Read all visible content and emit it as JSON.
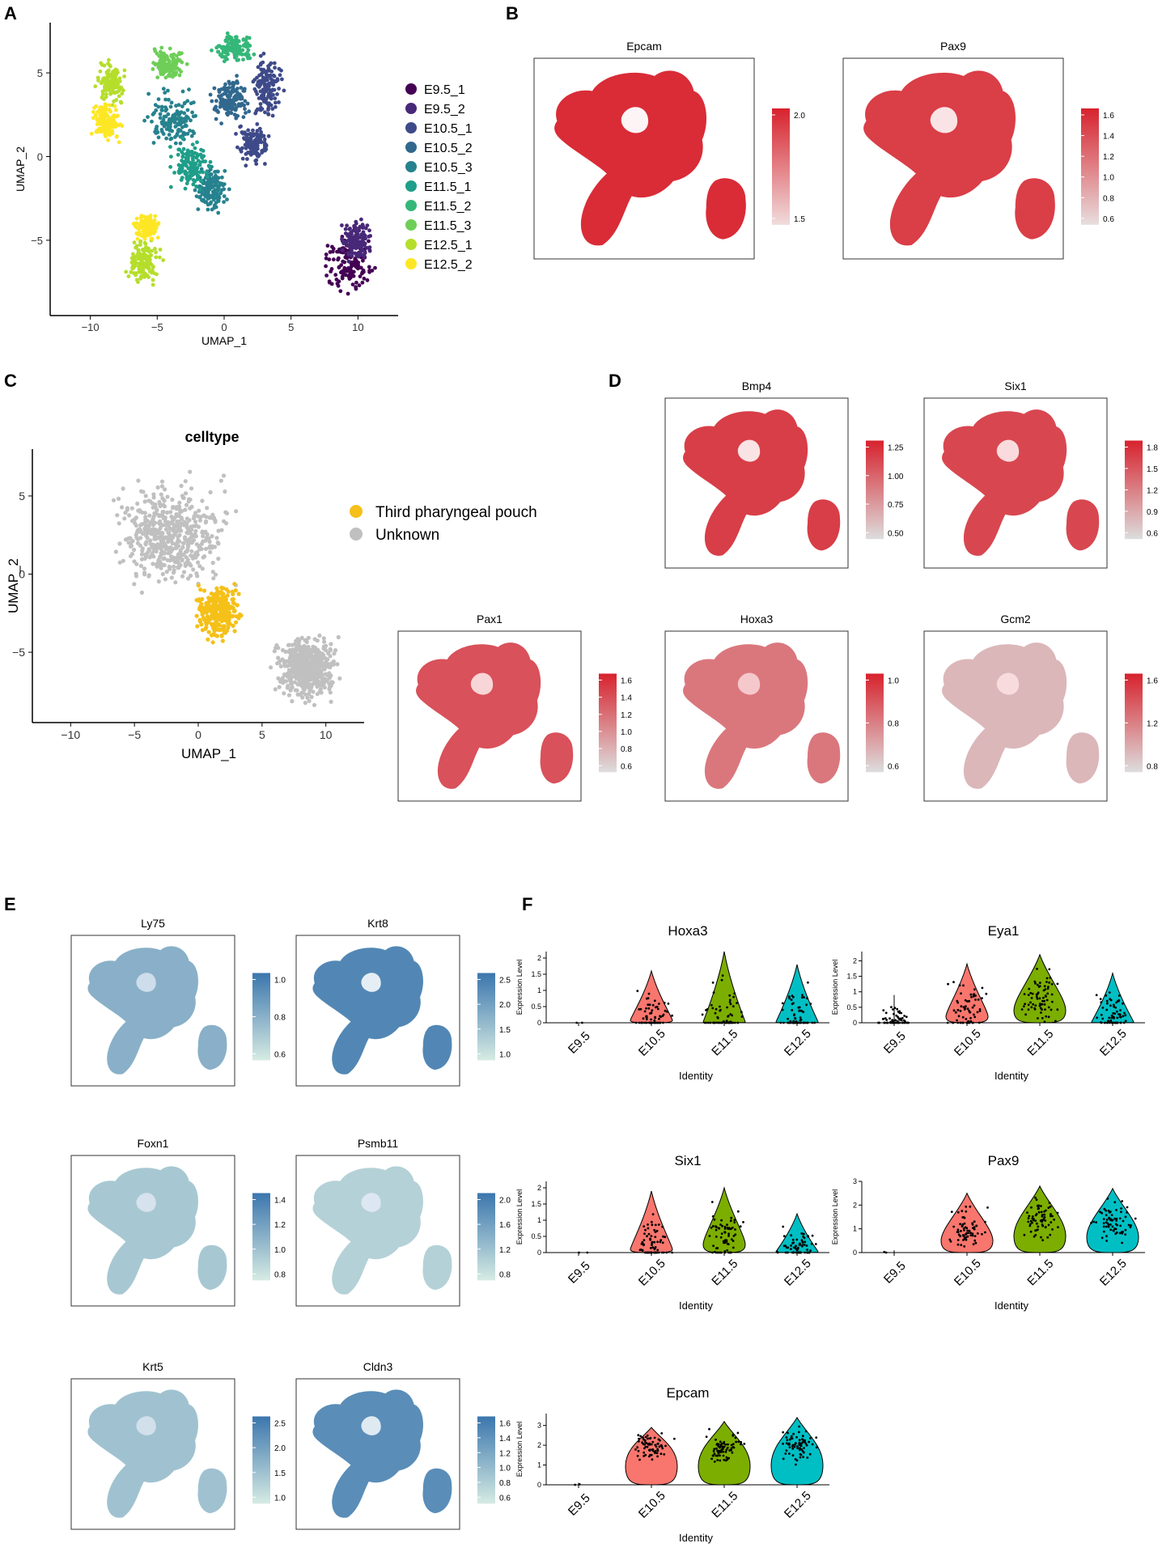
{
  "panels": {
    "A": {
      "letter": "A",
      "xlabel": "UMAP_1",
      "ylabel": "UMAP_2",
      "xticks": [
        "−10",
        "−5",
        "0",
        "5",
        "10"
      ],
      "yticks": [
        "5",
        "0",
        "−5"
      ],
      "legend": [
        {
          "label": "E9.5_1",
          "color": "#440154"
        },
        {
          "label": "E9.5_2",
          "color": "#482878"
        },
        {
          "label": "E10.5_1",
          "color": "#3e4a89"
        },
        {
          "label": "E10.5_2",
          "color": "#31688e"
        },
        {
          "label": "E10.5_3",
          "color": "#26828e"
        },
        {
          "label": "E11.5_1",
          "color": "#1f9e89"
        },
        {
          "label": "E11.5_2",
          "color": "#35b779"
        },
        {
          "label": "E11.5_3",
          "color": "#6ece58"
        },
        {
          "label": "E12.5_1",
          "color": "#b5de2b"
        },
        {
          "label": "E12.5_2",
          "color": "#fde725"
        }
      ]
    },
    "B": {
      "letter": "B",
      "features": [
        {
          "title": "Epcam",
          "ticks": [
            "2.0",
            "1.5"
          ]
        },
        {
          "title": "Pax9",
          "ticks": [
            "1.6",
            "1.4",
            "1.2",
            "1.0",
            "0.8",
            "0.6"
          ]
        }
      ]
    },
    "C": {
      "letter": "C",
      "title": "celltype",
      "xlabel": "UMAP_1",
      "ylabel": "UMAP_2",
      "xticks": [
        "−10",
        "−5",
        "0",
        "5",
        "10"
      ],
      "yticks": [
        "5",
        "0",
        "−5"
      ],
      "legend": [
        {
          "label": "Third pharyngeal pouch",
          "color": "#f5c018"
        },
        {
          "label": "Unknown",
          "color": "#c0c0c0"
        }
      ]
    },
    "D": {
      "letter": "D",
      "features": [
        {
          "title": "Bmp4",
          "ticks": [
            "1.25",
            "1.00",
            "0.75",
            "0.50"
          ]
        },
        {
          "title": "Six1",
          "ticks": [
            "1.8",
            "1.5",
            "1.2",
            "0.9",
            "0.6"
          ]
        },
        {
          "title": "Pax1",
          "ticks": [
            "1.6",
            "1.4",
            "1.2",
            "1.0",
            "0.8",
            "0.6"
          ]
        },
        {
          "title": "Hoxa3",
          "ticks": [
            "1.0",
            "0.8",
            "0.6"
          ]
        },
        {
          "title": "Gcm2",
          "ticks": [
            "1.6",
            "1.2",
            "0.8"
          ]
        }
      ]
    },
    "E": {
      "letter": "E",
      "features": [
        {
          "title": "Ly75",
          "ticks": [
            "1.0",
            "0.8",
            "0.6"
          ]
        },
        {
          "title": "Krt8",
          "ticks": [
            "2.5",
            "2.0",
            "1.5",
            "1.0"
          ]
        },
        {
          "title": "Foxn1",
          "ticks": [
            "1.4",
            "1.2",
            "1.0",
            "0.8"
          ]
        },
        {
          "title": "Psmb11",
          "ticks": [
            "2.0",
            "1.6",
            "1.2",
            "0.8"
          ]
        },
        {
          "title": "Krt5",
          "ticks": [
            "2.5",
            "2.0",
            "1.5",
            "1.0"
          ]
        },
        {
          "title": "Cldn3",
          "ticks": [
            "1.6",
            "1.4",
            "1.2",
            "1.0",
            "0.8",
            "0.6"
          ]
        }
      ]
    },
    "F": {
      "letter": "F",
      "xlabel": "Identity",
      "ylabel": "Expression Level",
      "categories": [
        "E9.5",
        "E10.5",
        "E11.5",
        "E12.5"
      ],
      "colors": {
        "E10.5": "#f8766d",
        "E11.5": "#7cae00",
        "E12.5": "#00bfc4"
      }
    }
  },
  "chart_data": [
    {
      "type": "scatter",
      "panel": "A",
      "title": "",
      "xlabel": "UMAP_1",
      "ylabel": "UMAP_2",
      "xlim": [
        -13,
        13
      ],
      "ylim": [
        -9.5,
        8
      ],
      "series": [
        {
          "name": "E9.5_1",
          "clusters": [
            {
              "cx": 9.3,
              "cy": -6.2,
              "rx": 2.6,
              "ry": 2.4
            }
          ]
        },
        {
          "name": "E9.5_2",
          "clusters": [
            {
              "cx": 9.8,
              "cy": -5.0,
              "rx": 1.5,
              "ry": 1.5
            }
          ]
        },
        {
          "name": "E10.5_1",
          "clusters": [
            {
              "cx": 3.2,
              "cy": 4.2,
              "rx": 1.5,
              "ry": 2.3
            },
            {
              "cx": 2.2,
              "cy": 0.8,
              "rx": 1.6,
              "ry": 1.5
            }
          ]
        },
        {
          "name": "E10.5_2",
          "clusters": [
            {
              "cx": 0.4,
              "cy": 3.4,
              "rx": 1.8,
              "ry": 1.6
            }
          ]
        },
        {
          "name": "E10.5_3",
          "clusters": [
            {
              "cx": -3.8,
              "cy": 2.2,
              "rx": 2.4,
              "ry": 2.4
            },
            {
              "cx": -1.0,
              "cy": -2.0,
              "rx": 1.6,
              "ry": 1.8
            }
          ]
        },
        {
          "name": "E11.5_1",
          "clusters": [
            {
              "cx": -2.5,
              "cy": -0.5,
              "rx": 2.0,
              "ry": 1.8
            }
          ]
        },
        {
          "name": "E11.5_2",
          "clusters": [
            {
              "cx": 0.8,
              "cy": 6.5,
              "rx": 2.0,
              "ry": 1.0
            }
          ]
        },
        {
          "name": "E11.5_3",
          "clusters": [
            {
              "cx": -4.2,
              "cy": 5.5,
              "rx": 1.5,
              "ry": 1.2
            }
          ]
        },
        {
          "name": "E12.5_1",
          "clusters": [
            {
              "cx": -6.0,
              "cy": -6.3,
              "rx": 1.6,
              "ry": 1.8
            },
            {
              "cx": -8.5,
              "cy": 4.5,
              "rx": 1.3,
              "ry": 1.6
            }
          ]
        },
        {
          "name": "E12.5_2",
          "clusters": [
            {
              "cx": -8.8,
              "cy": 2.0,
              "rx": 1.3,
              "ry": 1.5
            },
            {
              "cx": -5.8,
              "cy": -4.2,
              "rx": 1.1,
              "ry": 1.0
            }
          ]
        }
      ]
    },
    {
      "type": "scatter",
      "panel": "C",
      "title": "celltype",
      "xlabel": "UMAP_1",
      "ylabel": "UMAP_2",
      "xlim": [
        -13,
        13
      ],
      "ylim": [
        -9.5,
        8
      ],
      "series": [
        {
          "name": "Third pharyngeal pouch",
          "clusters": [
            {
              "cx": 1.6,
              "cy": -2.4,
              "rx": 2.1,
              "ry": 2.3
            }
          ]
        },
        {
          "name": "Unknown",
          "clusters": [
            {
              "cx": -2.0,
              "cy": 2.5,
              "rx": 5.5,
              "ry": 4.5
            },
            {
              "cx": 8.5,
              "cy": -6.0,
              "rx": 3.0,
              "ry": 2.5
            }
          ]
        }
      ]
    },
    {
      "type": "violin",
      "panel": "F",
      "ylabel": "Expression Level",
      "xlabel": "Identity",
      "categories": [
        "E9.5",
        "E10.5",
        "E11.5",
        "E12.5"
      ],
      "plots": [
        {
          "gene": "Hoxa3",
          "yticks": [
            0.0,
            0.5,
            1.0,
            1.5,
            2.0
          ],
          "ymax": 2.2,
          "medians": [
            0,
            0.15,
            0.05,
            0.05
          ],
          "max": [
            0,
            1.6,
            2.2,
            1.8
          ]
        },
        {
          "gene": "Eya1",
          "yticks": [
            0.0,
            0.5,
            1.0,
            1.5,
            2.0
          ],
          "ymax": 2.3,
          "medians": [
            0,
            0.4,
            0.8,
            0.05
          ],
          "max": [
            0.9,
            1.9,
            2.2,
            1.6
          ]
        },
        {
          "gene": "Six1",
          "yticks": [
            0.0,
            0.5,
            1.0,
            1.5,
            2.0
          ],
          "ymax": 2.2,
          "medians": [
            0,
            0.2,
            0.5,
            0.05
          ],
          "max": [
            0,
            1.9,
            2.0,
            1.2
          ]
        },
        {
          "gene": "Pax9",
          "yticks": [
            0,
            1,
            2,
            3
          ],
          "ymax": 3.0,
          "medians": [
            0,
            1.0,
            1.4,
            1.3
          ],
          "max": [
            0.1,
            2.5,
            2.8,
            2.7
          ]
        },
        {
          "gene": "Epcam",
          "yticks": [
            0,
            1,
            2,
            3
          ],
          "ymax": 3.6,
          "medians": [
            0,
            1.9,
            1.9,
            2.0
          ],
          "max": [
            0.1,
            2.9,
            3.2,
            3.4
          ]
        }
      ]
    }
  ]
}
